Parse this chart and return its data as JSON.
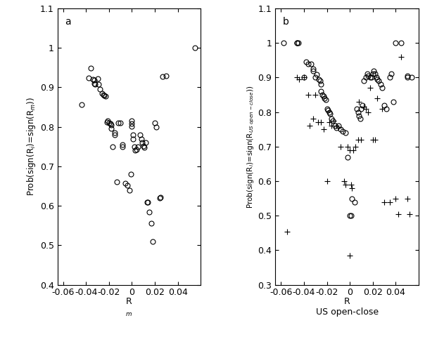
{
  "panel_a": {
    "label": "a",
    "xlim": [
      -0.065,
      0.06
    ],
    "ylim": [
      0.4,
      1.1
    ],
    "xticks": [
      -0.06,
      -0.04,
      -0.02,
      0,
      0.02,
      0.04
    ],
    "yticks": [
      0.4,
      0.5,
      0.6,
      0.7,
      0.8,
      0.9,
      1.0,
      1.1
    ],
    "circles_x": [
      -0.044,
      -0.038,
      -0.036,
      -0.034,
      -0.033,
      -0.033,
      -0.032,
      -0.03,
      -0.029,
      -0.028,
      -0.026,
      -0.025,
      -0.024,
      -0.023,
      -0.022,
      -0.021,
      -0.02,
      -0.019,
      -0.018,
      -0.018,
      -0.017,
      -0.015,
      -0.015,
      -0.013,
      -0.012,
      -0.01,
      -0.008,
      -0.008,
      -0.006,
      -0.004,
      -0.002,
      -0.001,
      0.0,
      0.0,
      0.0,
      0.001,
      0.001,
      0.002,
      0.003,
      0.004,
      0.005,
      0.007,
      0.008,
      0.009,
      0.01,
      0.011,
      0.012,
      0.013,
      0.014,
      0.015,
      0.017,
      0.018,
      0.02,
      0.021,
      0.024,
      0.025,
      0.027,
      0.03,
      0.055
    ],
    "circles_y": [
      0.856,
      0.924,
      0.948,
      0.92,
      0.918,
      0.91,
      0.908,
      0.922,
      0.908,
      0.895,
      0.885,
      0.882,
      0.88,
      0.878,
      0.812,
      0.815,
      0.81,
      0.808,
      0.805,
      0.796,
      0.75,
      0.78,
      0.785,
      0.66,
      0.81,
      0.81,
      0.75,
      0.755,
      0.658,
      0.652,
      0.64,
      0.68,
      0.815,
      0.808,
      0.802,
      0.78,
      0.77,
      0.75,
      0.74,
      0.742,
      0.75,
      0.78,
      0.77,
      0.76,
      0.752,
      0.748,
      0.76,
      0.61,
      0.61,
      0.584,
      0.556,
      0.51,
      0.81,
      0.8,
      0.62,
      0.622,
      0.928,
      0.93,
      1.0
    ]
  },
  "panel_b": {
    "label": "b",
    "xlim": [
      -0.065,
      0.06
    ],
    "ylim": [
      0.3,
      1.1
    ],
    "xticks": [
      -0.06,
      -0.04,
      -0.02,
      0,
      0.02,
      0.04
    ],
    "yticks": [
      0.3,
      0.4,
      0.5,
      0.6,
      0.7,
      0.8,
      0.9,
      1.0,
      1.1
    ],
    "circles_x": [
      -0.058,
      -0.046,
      -0.046,
      -0.045,
      -0.04,
      -0.038,
      -0.036,
      -0.034,
      -0.032,
      -0.032,
      -0.03,
      -0.029,
      -0.027,
      -0.026,
      -0.025,
      -0.025,
      -0.024,
      -0.023,
      -0.022,
      -0.021,
      -0.02,
      -0.019,
      -0.018,
      -0.017,
      -0.016,
      -0.015,
      -0.013,
      -0.012,
      -0.01,
      -0.008,
      -0.006,
      -0.004,
      -0.002,
      0.0,
      0.001,
      0.002,
      0.004,
      0.006,
      0.007,
      0.008,
      0.009,
      0.01,
      0.011,
      0.012,
      0.014,
      0.015,
      0.016,
      0.018,
      0.019,
      0.02,
      0.021,
      0.022,
      0.023,
      0.024,
      0.025,
      0.027,
      0.028,
      0.03,
      0.032,
      0.035,
      0.036,
      0.038,
      0.04,
      0.045,
      0.05,
      0.05,
      0.054
    ],
    "circles_y": [
      1.0,
      1.0,
      1.0,
      1.0,
      0.9,
      0.945,
      0.94,
      0.94,
      0.925,
      0.92,
      0.9,
      0.908,
      0.895,
      0.89,
      0.88,
      0.86,
      0.85,
      0.845,
      0.84,
      0.835,
      0.81,
      0.805,
      0.8,
      0.795,
      0.78,
      0.775,
      0.76,
      0.755,
      0.76,
      0.75,
      0.745,
      0.74,
      0.67,
      0.5,
      0.5,
      0.55,
      0.54,
      0.81,
      0.8,
      0.79,
      0.78,
      0.81,
      0.82,
      0.89,
      0.9,
      0.91,
      0.905,
      0.9,
      0.9,
      0.91,
      0.92,
      0.91,
      0.9,
      0.895,
      0.89,
      0.88,
      0.87,
      0.82,
      0.81,
      0.9,
      0.91,
      0.83,
      1.0,
      1.0,
      0.9,
      0.905,
      0.9
    ],
    "crosses_x": [
      -0.055,
      -0.046,
      -0.044,
      -0.04,
      -0.036,
      -0.035,
      -0.032,
      -0.03,
      -0.028,
      -0.025,
      -0.023,
      -0.02,
      -0.018,
      -0.016,
      -0.014,
      -0.012,
      -0.01,
      -0.008,
      -0.005,
      -0.004,
      -0.002,
      0.0,
      0.0,
      0.001,
      0.002,
      0.003,
      0.005,
      0.007,
      0.008,
      0.01,
      0.012,
      0.014,
      0.016,
      0.018,
      0.02,
      0.022,
      0.024,
      0.028,
      0.03,
      0.035,
      0.04,
      0.042,
      0.045,
      0.05,
      0.052
    ],
    "crosses_y": [
      0.454,
      0.9,
      0.895,
      0.9,
      0.85,
      0.76,
      0.78,
      0.85,
      0.77,
      0.77,
      0.75,
      0.6,
      0.77,
      0.76,
      0.775,
      0.76,
      0.755,
      0.7,
      0.6,
      0.59,
      0.7,
      0.69,
      0.385,
      0.59,
      0.58,
      0.69,
      0.7,
      0.72,
      0.83,
      0.72,
      0.815,
      0.81,
      0.8,
      0.87,
      0.72,
      0.72,
      0.84,
      0.81,
      0.54,
      0.54,
      0.55,
      0.505,
      0.96,
      0.55,
      0.505
    ]
  },
  "font_family": "DejaVu Sans",
  "font_size": 9,
  "marker_size": 5,
  "marker_lw": 0.8
}
